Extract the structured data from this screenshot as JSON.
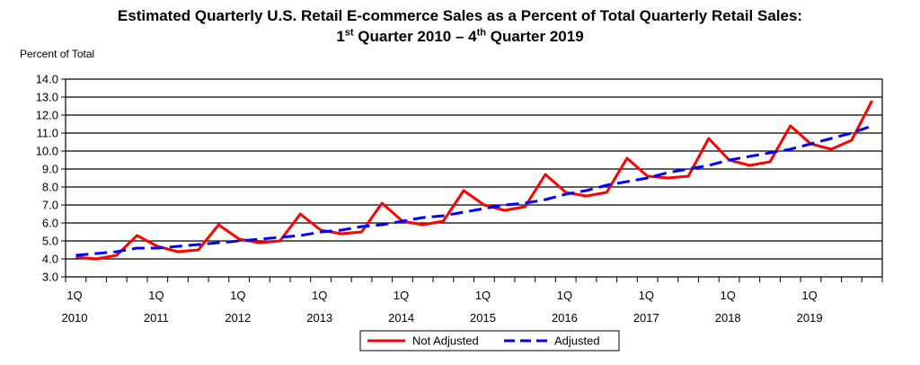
{
  "chart_data": {
    "type": "line",
    "title_line1": "Estimated Quarterly U.S. Retail E-commerce Sales as a Percent of Total Quarterly Retail Sales:",
    "title_line2": {
      "start_num": "1",
      "start_sup": "st",
      "start_rest": " Quarter 2010 – ",
      "end_num": "4",
      "end_sup": "th",
      "end_rest": " Quarter 2019"
    },
    "ylabel": "Percent of Total",
    "xlabel": "",
    "ylim": [
      3.0,
      14.0
    ],
    "ytick_step": 1.0,
    "yticks": [
      "3.0",
      "4.0",
      "5.0",
      "6.0",
      "7.0",
      "8.0",
      "9.0",
      "10.0",
      "11.0",
      "12.0",
      "13.0",
      "14.0"
    ],
    "xticks": [
      {
        "quarter": "1Q",
        "year": "2010"
      },
      {
        "quarter": "1Q",
        "year": "2011"
      },
      {
        "quarter": "1Q",
        "year": "2012"
      },
      {
        "quarter": "1Q",
        "year": "2013"
      },
      {
        "quarter": "1Q",
        "year": "2014"
      },
      {
        "quarter": "1Q",
        "year": "2015"
      },
      {
        "quarter": "1Q",
        "year": "2016"
      },
      {
        "quarter": "1Q",
        "year": "2017"
      },
      {
        "quarter": "1Q",
        "year": "2018"
      },
      {
        "quarter": "1Q",
        "year": "2019"
      }
    ],
    "grid": true,
    "legend_position": "bottom-center",
    "series": [
      {
        "name": "Not Adjusted",
        "color": "#ff0000",
        "style": "solid",
        "values": [
          4.1,
          4.0,
          4.2,
          5.3,
          4.7,
          4.4,
          4.5,
          5.9,
          5.1,
          4.9,
          5.0,
          6.5,
          5.6,
          5.4,
          5.5,
          7.1,
          6.1,
          5.9,
          6.1,
          7.8,
          7.0,
          6.7,
          6.9,
          8.7,
          7.7,
          7.5,
          7.7,
          9.6,
          8.6,
          8.5,
          8.6,
          10.7,
          9.5,
          9.2,
          9.4,
          11.4,
          10.4,
          10.1,
          10.6,
          12.8
        ]
      },
      {
        "name": "Adjusted",
        "color": "#0000ff",
        "style": "dashed",
        "values": [
          4.2,
          4.3,
          4.4,
          4.6,
          4.6,
          4.7,
          4.8,
          4.9,
          5.0,
          5.1,
          5.2,
          5.3,
          5.5,
          5.6,
          5.8,
          5.9,
          6.1,
          6.3,
          6.4,
          6.6,
          6.8,
          7.0,
          7.1,
          7.3,
          7.6,
          7.8,
          8.1,
          8.3,
          8.5,
          8.8,
          9.0,
          9.2,
          9.5,
          9.7,
          9.9,
          10.1,
          10.4,
          10.7,
          11.0,
          11.4
        ]
      }
    ]
  }
}
